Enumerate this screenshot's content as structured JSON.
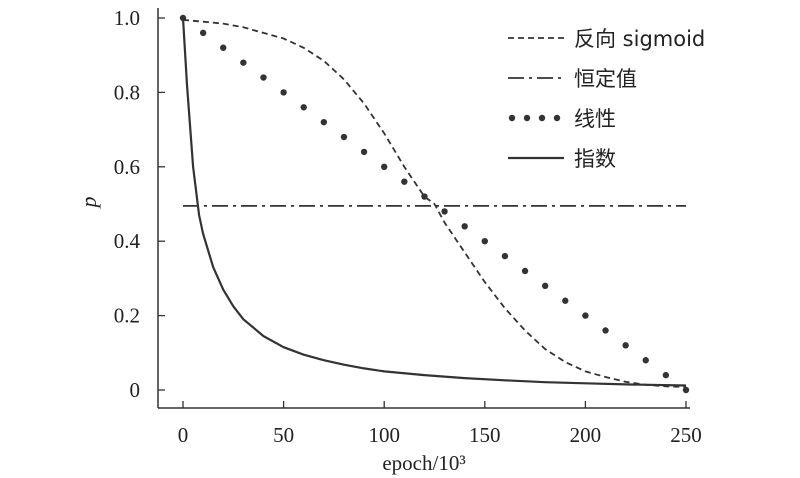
{
  "chart_data": {
    "type": "line",
    "xlabel": "epoch/10³",
    "ylabel": "p",
    "xlim": [
      0,
      250
    ],
    "ylim": [
      0,
      1.0
    ],
    "x_ticks": [
      0,
      50,
      100,
      150,
      200,
      250
    ],
    "y_ticks": [
      0,
      0.2,
      0.4,
      0.6,
      0.8,
      1.0
    ],
    "x_tick_labels": [
      "0",
      "50",
      "100",
      "150",
      "200",
      "250"
    ],
    "y_tick_labels": [
      "0",
      "0.2",
      "0.4",
      "0.6",
      "0.8",
      "1.0"
    ],
    "grid": false,
    "legend_position": "top-right",
    "series": [
      {
        "name": "反向 sigmoid",
        "style": "dashed",
        "color": "#333333",
        "x": [
          0,
          10,
          20,
          30,
          40,
          50,
          60,
          70,
          80,
          90,
          100,
          110,
          120,
          125,
          130,
          140,
          150,
          160,
          170,
          180,
          190,
          200,
          210,
          220,
          230,
          240,
          250
        ],
        "y": [
          0.995,
          0.99,
          0.985,
          0.975,
          0.96,
          0.945,
          0.92,
          0.885,
          0.835,
          0.77,
          0.69,
          0.6,
          0.52,
          0.5,
          0.45,
          0.37,
          0.29,
          0.22,
          0.16,
          0.11,
          0.075,
          0.05,
          0.035,
          0.022,
          0.014,
          0.01,
          0.008
        ]
      },
      {
        "name": "恒定值",
        "style": "dashdot",
        "color": "#333333",
        "x": [
          0,
          250
        ],
        "y": [
          0.495,
          0.495
        ]
      },
      {
        "name": "线性",
        "style": "dotted",
        "color": "#333333",
        "x": [
          0,
          10,
          20,
          30,
          40,
          50,
          60,
          70,
          80,
          90,
          100,
          110,
          120,
          130,
          140,
          150,
          160,
          170,
          180,
          190,
          200,
          210,
          220,
          230,
          240,
          250
        ],
        "y": [
          1.0,
          0.96,
          0.92,
          0.88,
          0.84,
          0.8,
          0.76,
          0.72,
          0.68,
          0.64,
          0.6,
          0.56,
          0.52,
          0.48,
          0.44,
          0.4,
          0.36,
          0.32,
          0.28,
          0.24,
          0.2,
          0.16,
          0.12,
          0.08,
          0.04,
          0.0
        ]
      },
      {
        "name": "指数",
        "style": "solid",
        "color": "#333333",
        "x": [
          0,
          2,
          5,
          8,
          10,
          15,
          20,
          25,
          30,
          40,
          50,
          60,
          70,
          80,
          90,
          100,
          120,
          140,
          160,
          180,
          200,
          220,
          250
        ],
        "y": [
          1.0,
          0.82,
          0.6,
          0.47,
          0.42,
          0.33,
          0.27,
          0.225,
          0.19,
          0.145,
          0.115,
          0.095,
          0.08,
          0.068,
          0.058,
          0.05,
          0.04,
          0.032,
          0.026,
          0.021,
          0.018,
          0.015,
          0.012
        ]
      }
    ]
  }
}
